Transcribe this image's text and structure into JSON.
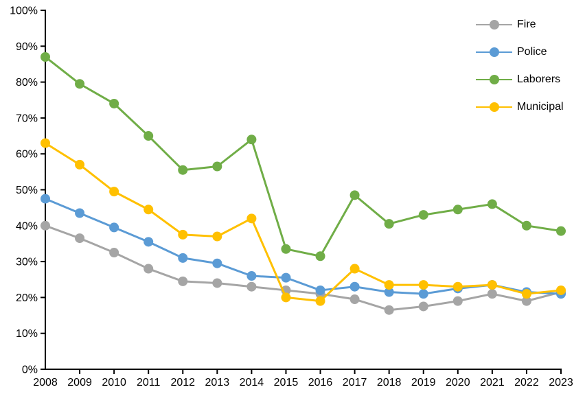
{
  "chart_data": {
    "type": "line",
    "title": "",
    "xlabel": "",
    "ylabel": "",
    "x": [
      2008,
      2009,
      2010,
      2011,
      2012,
      2013,
      2014,
      2015,
      2016,
      2017,
      2018,
      2019,
      2020,
      2021,
      2022,
      2023
    ],
    "series": [
      {
        "name": "Fire",
        "color": "#A5A5A5",
        "values": [
          40,
          36.5,
          32.5,
          28,
          24.5,
          24,
          23,
          22,
          21,
          19.5,
          16.5,
          17.5,
          19,
          21,
          19,
          21.5
        ]
      },
      {
        "name": "Police",
        "color": "#5B9BD5",
        "values": [
          47.5,
          43.5,
          39.5,
          35.5,
          31,
          29.5,
          26,
          25.5,
          22,
          23,
          21.5,
          21,
          22.5,
          23.5,
          21.5,
          21
        ]
      },
      {
        "name": "Laborers",
        "color": "#70AD47",
        "values": [
          87,
          79.5,
          74,
          65,
          55.5,
          56.5,
          64,
          33.5,
          31.5,
          48.5,
          40.5,
          43,
          44.5,
          46,
          40,
          38.5
        ]
      },
      {
        "name": "Municipal",
        "color": "#FFC000",
        "values": [
          63,
          57,
          49.5,
          44.5,
          37.5,
          37,
          42,
          20,
          19,
          28,
          23.5,
          23.5,
          23,
          23.5,
          21,
          22
        ]
      }
    ],
    "ylim": [
      0,
      100
    ],
    "ytick_step": 10,
    "ytick_labels": [
      "0%",
      "10%",
      "20%",
      "30%",
      "40%",
      "50%",
      "60%",
      "70%",
      "80%",
      "90%",
      "100%"
    ],
    "grid": false,
    "legend_position": "top-right",
    "axis_color": "#000000",
    "marker_style": "circle"
  }
}
